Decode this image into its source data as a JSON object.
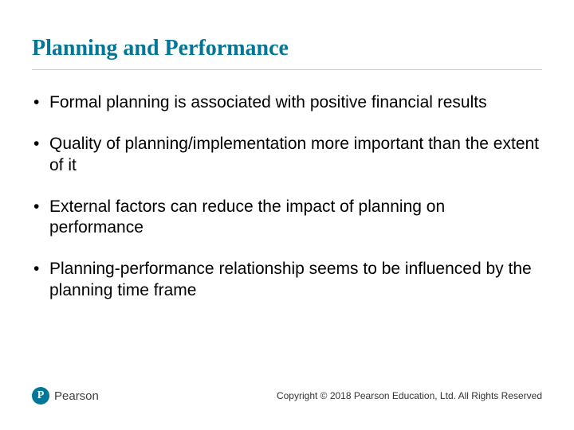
{
  "title": "Planning and Performance",
  "title_color": "#007699",
  "title_fontsize": 28,
  "title_fontfamily": "Georgia, 'Times New Roman', serif",
  "underline_color": "#cccccc",
  "bullets": [
    "Formal planning is associated with positive financial results",
    "Quality of planning/implementation more important than the extent of it",
    "External factors can reduce the impact of planning on performance",
    "Planning-performance relationship seems to be influenced by the planning time frame"
  ],
  "bullet_fontsize": 21,
  "bullet_color": "#000000",
  "logo": {
    "letter": "P",
    "brand": "Pearson",
    "circle_color": "#007699",
    "text_color": "#404040"
  },
  "copyright": "Copyright © 2018 Pearson Education, Ltd. All Rights Reserved",
  "copyright_fontsize": 12,
  "copyright_color": "#333333",
  "background_color": "#ffffff"
}
